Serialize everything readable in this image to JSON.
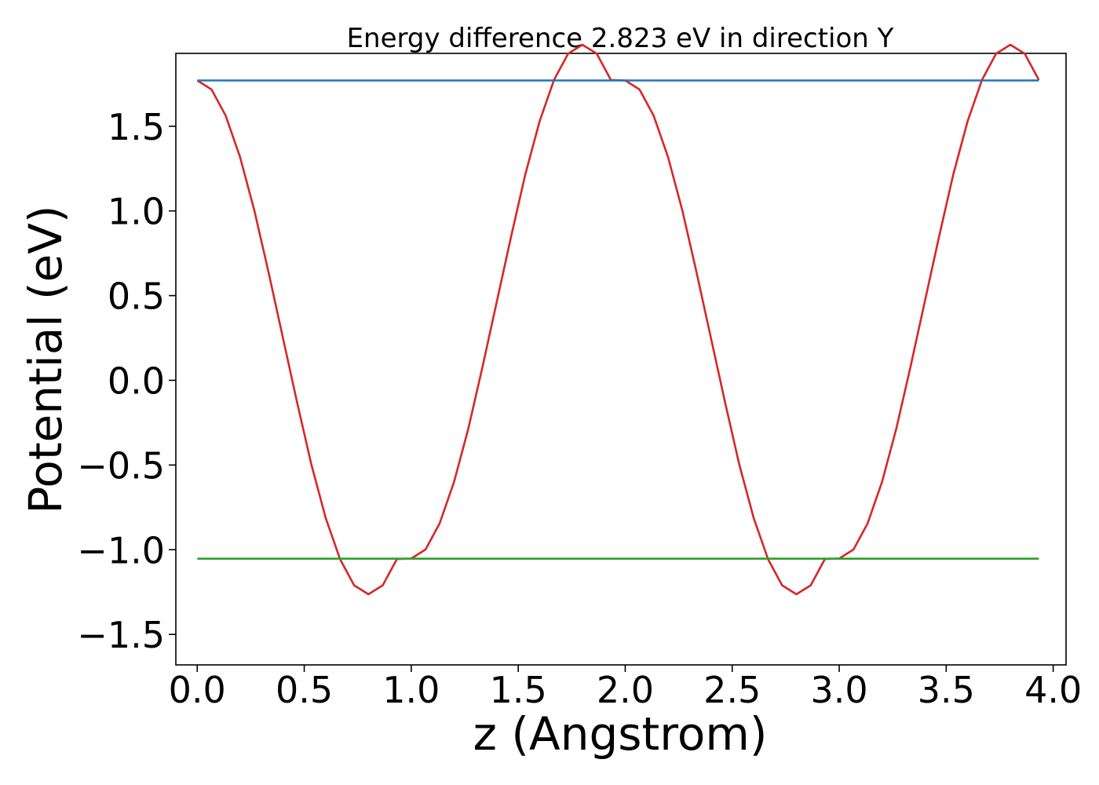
{
  "chart_data": {
    "type": "line",
    "title": "Energy difference 2.823 eV in direction Y",
    "xlabel": "z (Angstrom)",
    "ylabel": "Potential (eV)",
    "xlim": [
      -0.1,
      4.06
    ],
    "ylim": [
      -1.68,
      1.93
    ],
    "xticks": [
      0.0,
      0.5,
      1.0,
      1.5,
      2.0,
      2.5,
      3.0,
      3.5,
      4.0
    ],
    "xtick_labels": [
      "0.0",
      "0.5",
      "1.0",
      "1.5",
      "2.0",
      "2.5",
      "3.0",
      "3.5",
      "4.0"
    ],
    "yticks": [
      -1.5,
      -1.0,
      -0.5,
      0.0,
      0.5,
      1.0,
      1.5
    ],
    "ytick_labels": [
      "−1.5",
      "−1.0",
      "−0.5",
      "0.0",
      "0.5",
      "1.0",
      "1.5"
    ],
    "grid": false,
    "series": [
      {
        "color": "#d62728",
        "x": [
          0.0,
          0.067,
          0.133,
          0.2,
          0.267,
          0.333,
          0.4,
          0.467,
          0.533,
          0.6,
          0.667,
          0.733,
          0.8,
          0.867,
          0.933,
          1.0,
          1.067,
          1.133,
          1.2,
          1.267,
          1.333,
          1.4,
          1.467,
          1.533,
          1.6,
          1.667,
          1.733,
          1.8,
          1.867,
          1.933,
          2.0,
          2.067,
          2.133,
          2.2,
          2.267,
          2.333,
          2.4,
          2.467,
          2.533,
          2.6,
          2.667,
          2.733,
          2.8,
          2.867,
          2.933,
          3.0,
          3.067,
          3.133,
          3.2,
          3.267,
          3.333,
          3.4,
          3.467,
          3.533,
          3.6,
          3.667,
          3.733,
          3.8,
          3.867,
          3.933
        ],
        "y": [
          1.77,
          1.717,
          1.562,
          1.318,
          1.003,
          0.64,
          0.253,
          -0.133,
          -0.496,
          -0.811,
          -1.055,
          -1.21,
          -1.263,
          -1.21,
          -1.055,
          -1.052,
          -0.999,
          -0.844,
          -0.6,
          -0.285,
          0.078,
          0.465,
          0.851,
          1.214,
          1.529,
          1.773,
          1.928,
          1.981,
          1.928,
          1.773,
          1.77,
          1.717,
          1.562,
          1.318,
          1.003,
          0.64,
          0.253,
          -0.133,
          -0.496,
          -0.811,
          -1.055,
          -1.21,
          -1.263,
          -1.21,
          -1.055,
          -1.052,
          -0.999,
          -0.844,
          -0.6,
          -0.285,
          0.078,
          0.465,
          0.851,
          1.214,
          1.529,
          1.773,
          1.928,
          1.981,
          1.928,
          1.773
        ]
      },
      {
        "color": "#1f77b4",
        "x": [
          0.0,
          3.933
        ],
        "y": [
          1.77,
          1.77
        ]
      },
      {
        "color": "#2ca02c",
        "x": [
          0.0,
          3.933
        ],
        "y": [
          -1.053,
          -1.053
        ]
      }
    ]
  }
}
